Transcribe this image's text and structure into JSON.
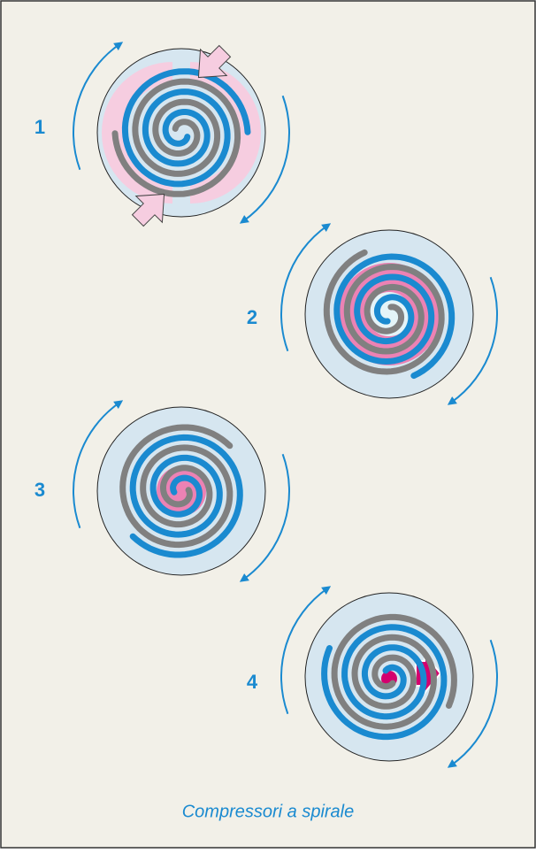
{
  "labels": [
    "1",
    "2",
    "3",
    "4"
  ],
  "caption": "Compressori a spirale"
}
